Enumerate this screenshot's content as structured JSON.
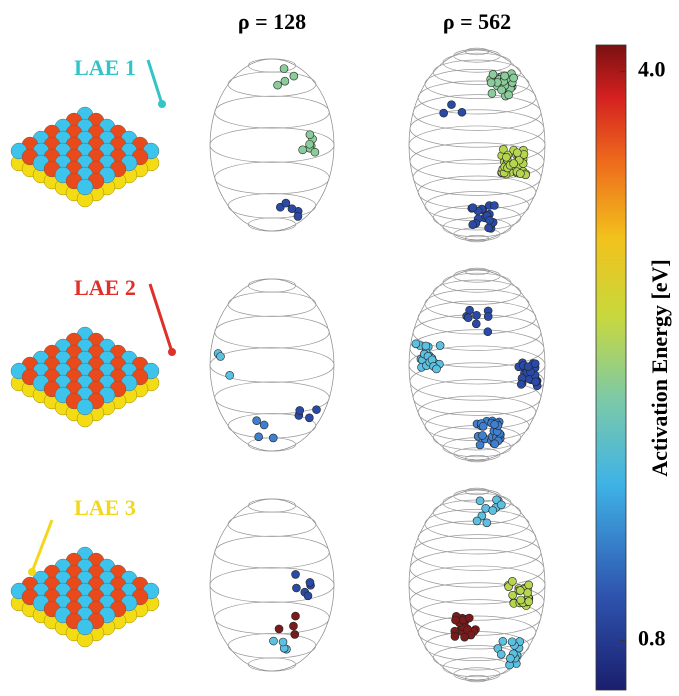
{
  "columns": [
    "ρ = 128",
    "ρ = 562"
  ],
  "rows": [
    {
      "label": "LAE 1",
      "color": "#33c4c8"
    },
    {
      "label": "LAE 2",
      "color": "#e0302a"
    },
    {
      "label": "LAE 3",
      "color": "#f2d81c"
    }
  ],
  "colorbar": {
    "label": "Activation Energy [eV]",
    "lim": [
      0.52,
      4.15
    ],
    "ticks": [
      {
        "value": 4,
        "label": "4.0"
      },
      {
        "value": 0.8,
        "label": "0.8"
      }
    ]
  }
}
